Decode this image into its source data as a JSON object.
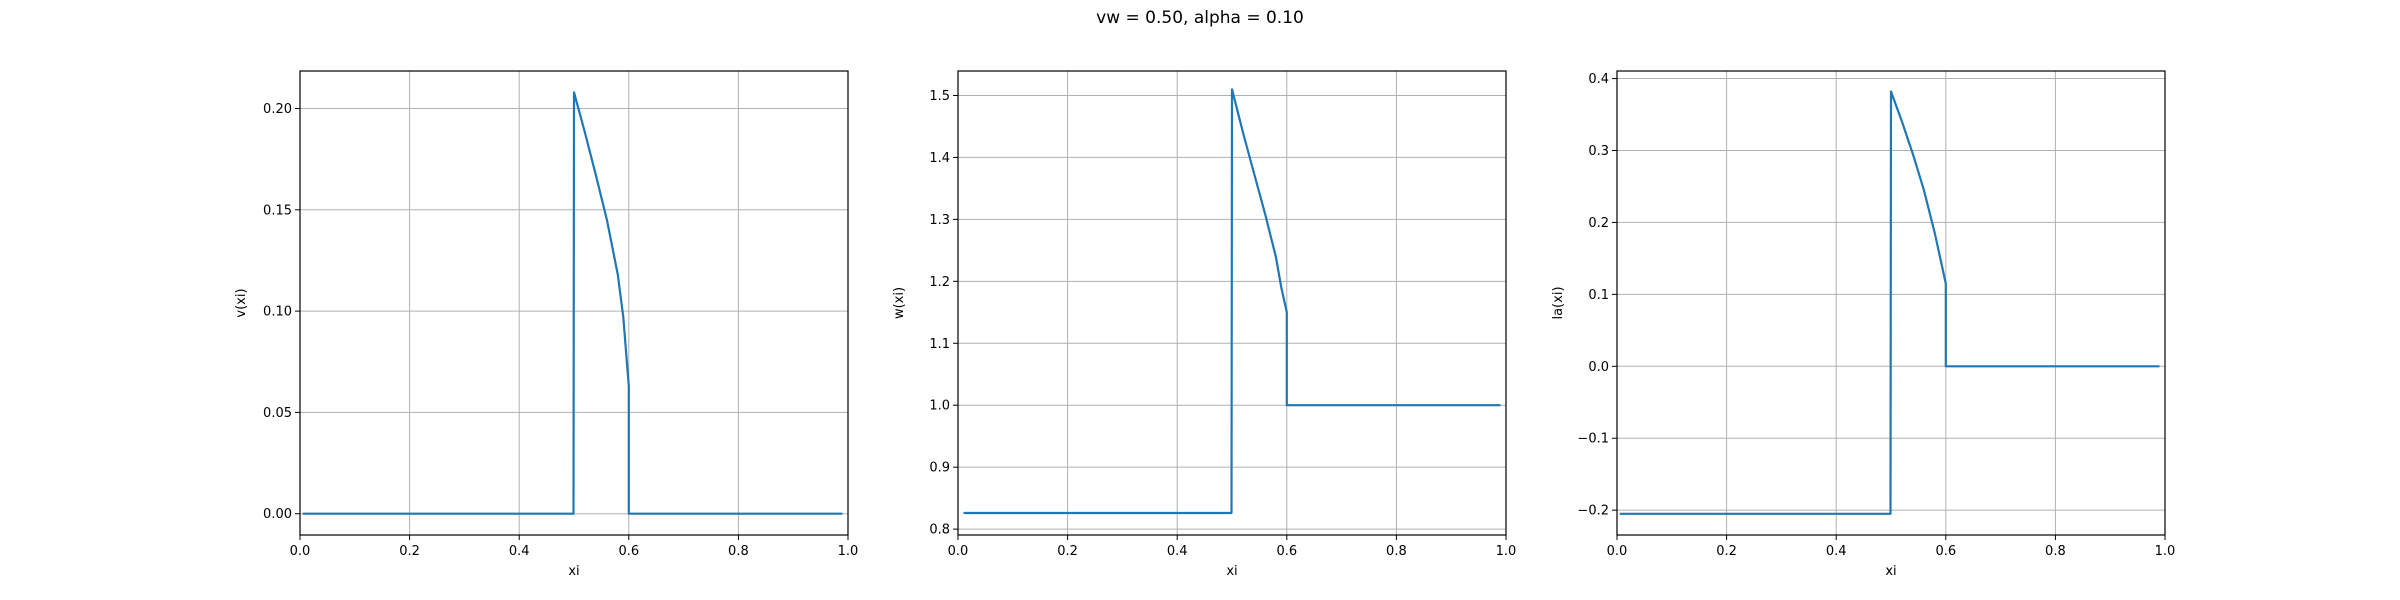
{
  "figure_title": "vw = 0.50, alpha = 0.10",
  "chart_data": [
    {
      "type": "line",
      "title": "",
      "xlabel": "xi",
      "ylabel": "v(xi)",
      "xlim": [
        0.0,
        1.0
      ],
      "ylim": [
        -0.0105,
        0.2185
      ],
      "xticks": [
        0.0,
        0.2,
        0.4,
        0.6,
        0.8,
        1.0
      ],
      "xtick_labels": [
        "0.0",
        "0.2",
        "0.4",
        "0.6",
        "0.8",
        "1.0"
      ],
      "yticks": [
        0.0,
        0.05,
        0.1,
        0.15,
        0.2
      ],
      "ytick_labels": [
        "0.00",
        "0.05",
        "0.10",
        "0.15",
        "0.20"
      ],
      "grid": true,
      "color": "#1f77b4",
      "series": [
        {
          "x": [
            0.005,
            0.499,
            0.5,
            0.52,
            0.54,
            0.56,
            0.58,
            0.59,
            0.6,
            0.6,
            0.99
          ],
          "y": [
            0.0,
            0.0,
            0.208,
            0.188,
            0.167,
            0.145,
            0.118,
            0.097,
            0.063,
            0.0,
            0.0
          ]
        }
      ]
    },
    {
      "type": "line",
      "title": "",
      "xlabel": "xi",
      "ylabel": "w(xi)",
      "xlim": [
        0.0,
        1.0
      ],
      "ylim": [
        0.7905,
        1.5395
      ],
      "xticks": [
        0.0,
        0.2,
        0.4,
        0.6,
        0.8,
        1.0
      ],
      "xtick_labels": [
        "0.0",
        "0.2",
        "0.4",
        "0.6",
        "0.8",
        "1.0"
      ],
      "yticks": [
        0.8,
        0.9,
        1.0,
        1.1,
        1.2,
        1.3,
        1.4,
        1.5
      ],
      "ytick_labels": [
        "0.8",
        "0.9",
        "1.0",
        "1.1",
        "1.2",
        "1.3",
        "1.4",
        "1.5"
      ],
      "grid": true,
      "color": "#1f77b4",
      "series": [
        {
          "x": [
            0.01,
            0.499,
            0.5,
            0.52,
            0.54,
            0.56,
            0.58,
            0.59,
            0.6,
            0.6,
            0.99
          ],
          "y": [
            0.826,
            0.826,
            1.51,
            1.44,
            1.375,
            1.31,
            1.24,
            1.19,
            1.15,
            1.0,
            1.0
          ]
        }
      ]
    },
    {
      "type": "line",
      "title": "",
      "xlabel": "xi",
      "ylabel": "la(xi)",
      "xlim": [
        0.0,
        1.0
      ],
      "ylim": [
        -0.2345,
        0.4105
      ],
      "xticks": [
        0.0,
        0.2,
        0.4,
        0.6,
        0.8,
        1.0
      ],
      "xtick_labels": [
        "0.0",
        "0.2",
        "0.4",
        "0.6",
        "0.8",
        "1.0"
      ],
      "yticks": [
        -0.2,
        -0.1,
        0.0,
        0.1,
        0.2,
        0.3,
        0.4
      ],
      "ytick_labels": [
        "−0.2",
        "−0.1",
        "0.0",
        "0.1",
        "0.2",
        "0.3",
        "0.4"
      ],
      "grid": true,
      "color": "#1f77b4",
      "series": [
        {
          "x": [
            0.005,
            0.499,
            0.5,
            0.52,
            0.54,
            0.56,
            0.58,
            0.59,
            0.6,
            0.6,
            0.99
          ],
          "y": [
            -0.205,
            -0.205,
            0.382,
            0.34,
            0.295,
            0.245,
            0.185,
            0.15,
            0.115,
            0.0,
            0.0
          ]
        }
      ]
    }
  ]
}
